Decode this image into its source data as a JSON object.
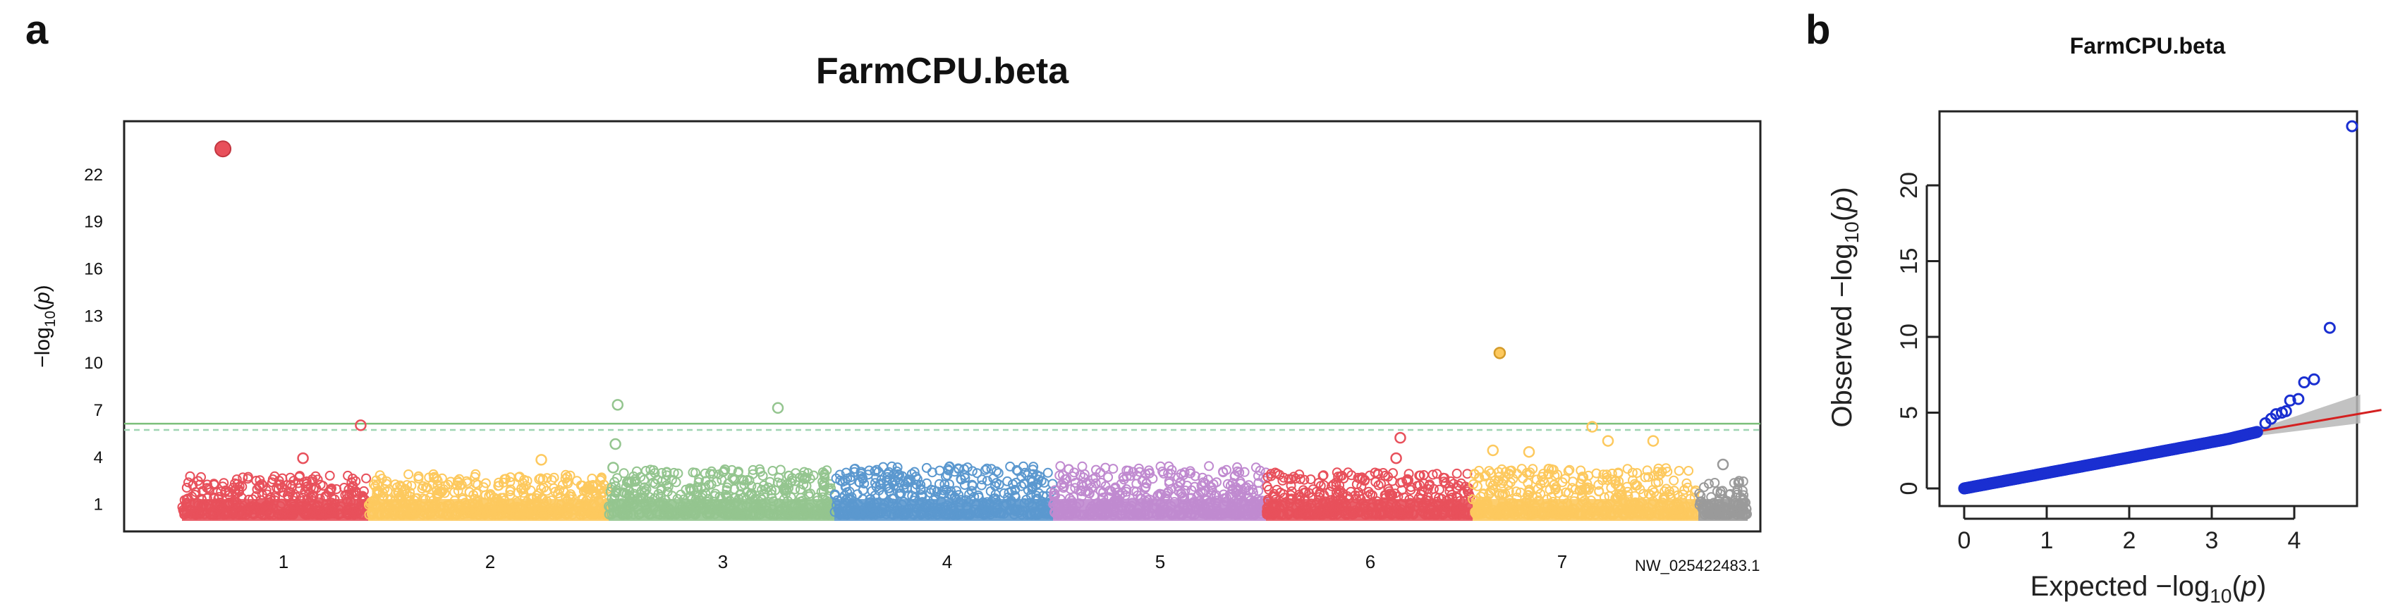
{
  "panels": {
    "a": {
      "label": "a",
      "title": "FarmCPU.beta"
    },
    "b": {
      "label": "b",
      "title": "FarmCPU.beta"
    }
  },
  "colors": {
    "chr_colors": [
      "#e8505b",
      "#fdc95e",
      "#94c58f",
      "#94c58f",
      "#5b98cf",
      "#c08ad0",
      "#e8505b",
      "#fdc95e",
      "#9a9a9a"
    ],
    "threshold_solid": "#7cbf7a",
    "threshold_dashed": "#9fd6b3",
    "qq_points": "#1a2fd1",
    "qq_line": "#d42020",
    "qq_band": "#b7b7b7"
  },
  "chart_data": [
    {
      "type": "scatter",
      "subtype": "manhattan",
      "title": "FarmCPU.beta",
      "xlabel": "",
      "ylabel": "-log10(p)",
      "x_categories": [
        "1",
        "2",
        "3",
        "4",
        "5",
        "6",
        "7",
        "NW_025422483.1"
      ],
      "y_ticks": [
        "1",
        "4",
        "7",
        "10",
        "13",
        "16",
        "19",
        "22"
      ],
      "ylim": [
        0,
        25
      ],
      "thresholds": [
        {
          "style": "solid",
          "value": 6.1
        },
        {
          "style": "dashed",
          "value": 5.7
        }
      ],
      "highlighted_points": [
        {
          "chr": "1",
          "pos": 0.22,
          "y": 23.6
        },
        {
          "chr": "1",
          "pos": 0.96,
          "y": 6.0
        },
        {
          "chr": "1",
          "pos": 0.65,
          "y": 3.9
        },
        {
          "chr": "2",
          "pos": 0.72,
          "y": 3.8
        },
        {
          "chr": "3",
          "pos": 0.04,
          "y": 7.3
        },
        {
          "chr": "3",
          "pos": 0.03,
          "y": 4.8
        },
        {
          "chr": "3",
          "pos": 0.02,
          "y": 3.3
        },
        {
          "chr": "3",
          "pos": 0.75,
          "y": 7.1
        },
        {
          "chr": "6",
          "pos": 0.65,
          "y": 5.2
        },
        {
          "chr": "6",
          "pos": 0.63,
          "y": 3.9
        },
        {
          "chr": "7",
          "pos": 0.12,
          "y": 10.6
        },
        {
          "chr": "7",
          "pos": 0.53,
          "y": 5.9
        },
        {
          "chr": "7",
          "pos": 0.6,
          "y": 5.0
        },
        {
          "chr": "7",
          "pos": 0.8,
          "y": 5.0
        },
        {
          "chr": "7",
          "pos": 0.25,
          "y": 4.3
        },
        {
          "chr": "7",
          "pos": 0.09,
          "y": 4.4
        },
        {
          "chr": "NW_025422483.1",
          "pos": 0.5,
          "y": 3.5
        }
      ],
      "background_max_y_by_chr": [
        2.8,
        2.9,
        3.2,
        3.4,
        3.4,
        3.0,
        3.3,
        2.5
      ]
    },
    {
      "type": "scatter",
      "subtype": "qq",
      "title": "FarmCPU.beta",
      "xlabel": "Expected -log10(p)",
      "ylabel": "Observed -log10(p)",
      "xlim": [
        0,
        4.8
      ],
      "ylim": [
        0,
        24.5
      ],
      "x_ticks": [
        "0",
        "1",
        "2",
        "3",
        "4"
      ],
      "y_ticks": [
        "0",
        "5",
        "10",
        "15",
        "20"
      ],
      "expected_line": {
        "x": [
          3.6,
          4.8
        ],
        "y": [
          3.8,
          4.9
        ]
      },
      "confidence_band": {
        "x": [
          3.6,
          4.8
        ],
        "lower": [
          3.5,
          4.3
        ],
        "upper": [
          4.0,
          6.2
        ]
      },
      "tail_points": [
        {
          "x": 3.65,
          "y": 4.3
        },
        {
          "x": 3.72,
          "y": 4.6
        },
        {
          "x": 3.78,
          "y": 4.9
        },
        {
          "x": 3.85,
          "y": 5.0
        },
        {
          "x": 3.9,
          "y": 5.1
        },
        {
          "x": 3.95,
          "y": 5.8
        },
        {
          "x": 4.05,
          "y": 5.9
        },
        {
          "x": 4.12,
          "y": 7.0
        },
        {
          "x": 4.24,
          "y": 7.2
        },
        {
          "x": 4.43,
          "y": 10.6
        },
        {
          "x": 4.7,
          "y": 23.9
        }
      ]
    }
  ]
}
